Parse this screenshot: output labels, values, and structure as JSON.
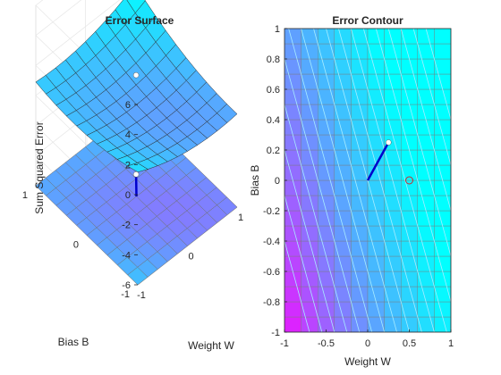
{
  "chart_data": [
    {
      "type": "surface",
      "title": "Error Surface",
      "xlabel": "Weight W",
      "ylabel": "Bias B",
      "zlabel": "Sum Squared Error",
      "xlim": [
        -1,
        1
      ],
      "ylim": [
        -1,
        1
      ],
      "zlim": [
        -6,
        6
      ],
      "x_ticks": [
        "-1",
        "0",
        "1"
      ],
      "y_ticks": [
        "-1",
        "0",
        "1"
      ],
      "z_ticks": [
        "-6",
        "-4",
        "-2",
        "0",
        "2",
        "4",
        "6"
      ],
      "grid": true,
      "colormap": [
        "#ff00ff",
        "#00ffff"
      ],
      "surface_function": "sum squared error over W,B in [-1,1]",
      "training_point": {
        "w": 0.25,
        "b": 0.25,
        "error": 0.6
      },
      "training_path": [
        {
          "w": 0.0,
          "b": 0.0
        },
        {
          "w": 0.25,
          "b": 0.25
        }
      ],
      "path_color": "#0000cc"
    },
    {
      "type": "contour",
      "title": "Error Contour",
      "xlabel": "Weight W",
      "ylabel": "Bias B",
      "xlim": [
        -1,
        1
      ],
      "ylim": [
        -1,
        1
      ],
      "x_ticks": [
        "-1",
        "-0.5",
        "0",
        "0.5",
        "1"
      ],
      "y_ticks": [
        "-1",
        "-0.8",
        "-0.6",
        "-0.4",
        "-0.2",
        "0",
        "0.2",
        "0.4",
        "0.6",
        "0.8",
        "1"
      ],
      "grid": true,
      "colormap": [
        "#ff00ff",
        "#00ffff"
      ],
      "contour_line_color": "#a8ecff",
      "training_path": [
        {
          "w": 0.0,
          "b": 0.0
        },
        {
          "w": 0.25,
          "b": 0.25
        }
      ],
      "path_color": "#0000cc",
      "current_point": {
        "w": 0.25,
        "b": 0.25
      },
      "target_point": {
        "w": 0.5,
        "b": 0.0
      }
    }
  ]
}
